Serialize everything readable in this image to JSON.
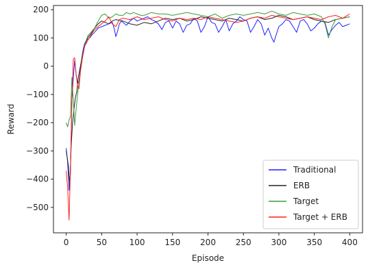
{
  "chart_data": {
    "type": "line",
    "title": "",
    "xlabel": "Episode",
    "ylabel": "Reward",
    "xlim": [
      -18,
      418
    ],
    "ylim": [
      -590,
      215
    ],
    "xticks": [
      0,
      50,
      100,
      150,
      200,
      250,
      300,
      350,
      400
    ],
    "yticks": [
      -500,
      -400,
      -300,
      -200,
      -100,
      0,
      100,
      200
    ],
    "grid": false,
    "legend": "bottom-right",
    "series": [
      {
        "name": "Traditional",
        "color": "#1f1fff",
        "x": [
          0,
          2,
          4,
          6,
          8,
          10,
          12,
          14,
          16,
          18,
          20,
          22,
          24,
          26,
          28,
          30,
          33,
          36,
          40,
          45,
          50,
          55,
          60,
          65,
          68,
          70,
          72,
          75,
          78,
          80,
          85,
          90,
          95,
          100,
          105,
          110,
          115,
          120,
          125,
          130,
          135,
          140,
          145,
          150,
          155,
          160,
          165,
          170,
          175,
          180,
          185,
          190,
          195,
          200,
          205,
          210,
          215,
          220,
          225,
          230,
          235,
          240,
          245,
          250,
          255,
          260,
          265,
          270,
          275,
          280,
          285,
          290,
          293,
          296,
          300,
          305,
          310,
          315,
          320,
          325,
          330,
          335,
          340,
          345,
          350,
          355,
          360,
          365,
          370,
          375,
          380,
          385,
          390,
          395,
          400
        ],
        "y": [
          -290,
          -340,
          -440,
          -380,
          -120,
          -40,
          20,
          -30,
          -60,
          -55,
          -10,
          30,
          60,
          80,
          90,
          95,
          100,
          110,
          120,
          135,
          140,
          145,
          150,
          155,
          130,
          105,
          120,
          150,
          160,
          155,
          145,
          160,
          170,
          160,
          165,
          170,
          175,
          165,
          160,
          150,
          130,
          155,
          160,
          135,
          160,
          150,
          120,
          145,
          150,
          170,
          160,
          120,
          140,
          175,
          155,
          150,
          120,
          140,
          165,
          125,
          150,
          160,
          175,
          165,
          160,
          120,
          140,
          165,
          150,
          110,
          135,
          100,
          85,
          110,
          140,
          150,
          165,
          160,
          140,
          120,
          160,
          165,
          150,
          125,
          135,
          150,
          160,
          155,
          110,
          130,
          145,
          155,
          140,
          145,
          150
        ]
      },
      {
        "name": "ERB",
        "color": "#222222",
        "x": [
          0,
          3,
          5,
          7,
          9,
          11,
          13,
          15,
          17,
          20,
          23,
          26,
          30,
          35,
          40,
          45,
          50,
          55,
          60,
          65,
          70,
          80,
          90,
          100,
          110,
          120,
          130,
          140,
          150,
          160,
          170,
          180,
          190,
          200,
          210,
          220,
          230,
          240,
          250,
          260,
          270,
          280,
          290,
          300,
          310,
          320,
          330,
          340,
          350,
          360,
          370,
          380,
          390,
          400
        ],
        "y": [
          -300,
          -350,
          -420,
          -280,
          -200,
          -150,
          -110,
          -90,
          -40,
          0,
          40,
          70,
          100,
          115,
          135,
          150,
          160,
          155,
          150,
          160,
          165,
          160,
          150,
          145,
          155,
          150,
          160,
          170,
          165,
          170,
          160,
          165,
          175,
          170,
          165,
          160,
          170,
          165,
          160,
          170,
          175,
          165,
          170,
          180,
          175,
          165,
          170,
          175,
          165,
          160,
          155,
          165,
          170,
          175
        ]
      },
      {
        "name": "Target",
        "color": "#3a9a3a",
        "x": [
          0,
          2,
          4,
          6,
          8,
          10,
          12,
          14,
          16,
          18,
          20,
          22,
          25,
          28,
          31,
          35,
          40,
          45,
          50,
          55,
          60,
          65,
          70,
          75,
          80,
          85,
          90,
          95,
          100,
          105,
          110,
          115,
          120,
          130,
          140,
          150,
          160,
          170,
          180,
          190,
          200,
          210,
          220,
          230,
          240,
          250,
          260,
          270,
          280,
          290,
          300,
          310,
          320,
          330,
          340,
          350,
          360,
          365,
          370,
          375,
          380,
          390,
          400
        ],
        "y": [
          -200,
          -215,
          -190,
          -180,
          -40,
          -120,
          -210,
          -150,
          -100,
          -60,
          -20,
          20,
          60,
          90,
          110,
          120,
          135,
          160,
          180,
          185,
          170,
          175,
          185,
          180,
          180,
          190,
          185,
          190,
          185,
          180,
          180,
          185,
          190,
          185,
          185,
          180,
          185,
          190,
          185,
          180,
          175,
          185,
          170,
          180,
          185,
          180,
          185,
          190,
          185,
          195,
          185,
          180,
          190,
          185,
          180,
          185,
          175,
          150,
          100,
          140,
          165,
          170,
          175
        ]
      },
      {
        "name": "Target + ERB",
        "color": "#ff1f1f",
        "x": [
          0,
          2,
          4,
          6,
          8,
          10,
          12,
          14,
          16,
          18,
          20,
          23,
          26,
          30,
          35,
          40,
          45,
          50,
          55,
          60,
          65,
          70,
          75,
          80,
          90,
          100,
          110,
          120,
          130,
          140,
          150,
          160,
          170,
          180,
          190,
          200,
          210,
          220,
          230,
          240,
          250,
          260,
          270,
          280,
          290,
          300,
          310,
          320,
          330,
          340,
          350,
          360,
          370,
          380,
          390,
          400
        ],
        "y": [
          -370,
          -430,
          -545,
          -360,
          -120,
          25,
          30,
          -30,
          -70,
          -80,
          -20,
          30,
          70,
          90,
          110,
          130,
          140,
          150,
          160,
          175,
          150,
          140,
          165,
          170,
          165,
          175,
          165,
          170,
          175,
          165,
          160,
          170,
          165,
          170,
          165,
          175,
          170,
          165,
          160,
          155,
          160,
          170,
          175,
          170,
          180,
          175,
          170,
          165,
          170,
          175,
          170,
          165,
          175,
          180,
          170,
          185
        ]
      }
    ]
  }
}
